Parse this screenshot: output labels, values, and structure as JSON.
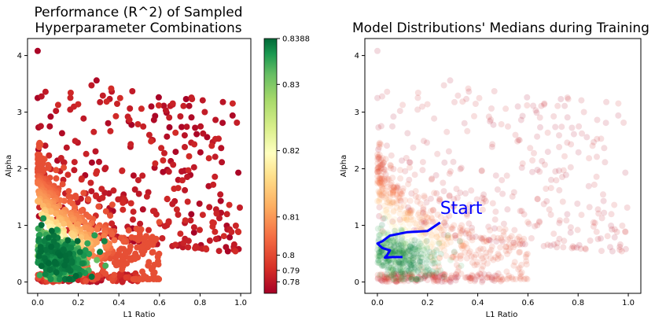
{
  "chart_data": [
    {
      "type": "scatter",
      "title_lines": [
        "Performance (R^2) of Sampled",
        "Hyperparameter Combinations"
      ],
      "xlabel": "L1 Ratio",
      "ylabel": "Alpha",
      "xlim": [
        -0.05,
        1.05
      ],
      "ylim": [
        -0.2,
        4.3
      ],
      "xticks": [
        0.0,
        0.2,
        0.4,
        0.6,
        0.8,
        1.0
      ],
      "xtick_labels": [
        "0.0",
        "0.2",
        "0.4",
        "0.6",
        "0.8",
        "1.0"
      ],
      "yticks": [
        0,
        1,
        2,
        3,
        4
      ],
      "ytick_labels": [
        "0",
        "1",
        "2",
        "3",
        "4"
      ],
      "grid": false,
      "colormap": "RdYlGn",
      "point_opacity": 1.0,
      "colorbar": {
        "range": [
          0.775,
          0.8388
        ],
        "ticks": [
          0.78,
          0.79,
          0.8,
          0.81,
          0.82,
          0.83,
          0.8388
        ],
        "tick_labels": [
          "0.78",
          "0.79",
          "0.8",
          "0.81",
          "0.82",
          "0.83",
          "0.8388"
        ],
        "nonlinear": true
      },
      "point_groups": [
        {
          "name": "sparse_top",
          "count": 320,
          "x_range": [
            0.0,
            1.0
          ],
          "alpha_range": [
            0.9,
            3.6
          ],
          "score_range": [
            0.775,
            0.79
          ]
        },
        {
          "name": "mid_band",
          "count": 420,
          "x_range": [
            0.0,
            0.6
          ],
          "alpha_range": [
            0.3,
            1.9
          ],
          "score_range": [
            0.8,
            0.825
          ]
        },
        {
          "name": "green_core",
          "count": 380,
          "x_center": 0.08,
          "alpha_center": 0.5,
          "score_range": [
            0.826,
            0.8388
          ]
        },
        {
          "name": "bottom_strip",
          "count": 160,
          "x_range": [
            0.0,
            0.5
          ],
          "alpha_range": [
            0.0,
            0.15
          ],
          "score_range": [
            0.775,
            0.8
          ]
        }
      ],
      "highlight_points": [
        {
          "x": 0.0,
          "y": 4.08,
          "score": 0.776
        },
        {
          "x": 0.0,
          "y": 3.25,
          "score": 0.776
        },
        {
          "x": 0.29,
          "y": 3.56,
          "score": 0.777
        },
        {
          "x": 0.56,
          "y": 3.1,
          "score": 0.777
        },
        {
          "x": 0.96,
          "y": 2.94,
          "score": 0.777
        }
      ]
    },
    {
      "type": "scatter",
      "title_lines": [
        "Model Distributions' Medians during Training"
      ],
      "xlabel": "L1 Ratio",
      "ylabel": "Alpha",
      "xlim": [
        -0.05,
        1.05
      ],
      "ylim": [
        -0.2,
        4.3
      ],
      "xticks": [
        0.0,
        0.2,
        0.4,
        0.6,
        0.8,
        1.0
      ],
      "xtick_labels": [
        "0.0",
        "0.2",
        "0.4",
        "0.6",
        "0.8",
        "1.0"
      ],
      "yticks": [
        0,
        1,
        2,
        3,
        4
      ],
      "ytick_labels": [
        "0",
        "1",
        "2",
        "3",
        "4"
      ],
      "grid": false,
      "colormap": "RdYlGn",
      "point_opacity": 0.15,
      "annotation": {
        "text": "Start",
        "x": 0.25,
        "y": 1.2,
        "color": "#0000ff"
      },
      "path": {
        "color": "#0000ff",
        "points": [
          [
            0.25,
            1.05
          ],
          [
            0.2,
            0.9
          ],
          [
            0.12,
            0.88
          ],
          [
            0.05,
            0.82
          ],
          [
            0.02,
            0.72
          ],
          [
            0.0,
            0.68
          ],
          [
            0.02,
            0.6
          ],
          [
            0.05,
            0.56
          ],
          [
            0.04,
            0.48
          ],
          [
            0.03,
            0.43
          ],
          [
            0.06,
            0.44
          ],
          [
            0.1,
            0.44
          ]
        ]
      }
    }
  ]
}
